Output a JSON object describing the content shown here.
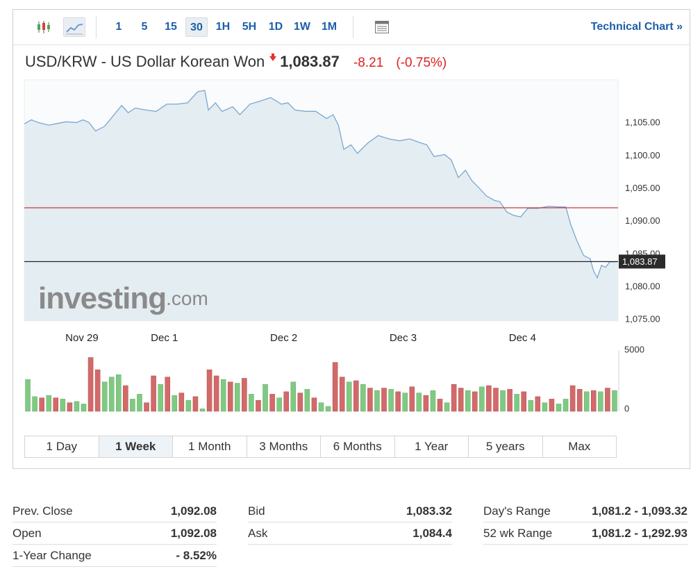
{
  "toolbar": {
    "intervals": [
      "1",
      "5",
      "15",
      "30",
      "1H",
      "5H",
      "1D",
      "1W",
      "1M"
    ],
    "active_interval": 3,
    "link": "Technical Chart",
    "link_arrow": "»"
  },
  "header": {
    "title": "USD/KRW - US Dollar Korean Won",
    "price": "1,083.87",
    "change": "-8.21",
    "change_pct": "(-0.75%)"
  },
  "chart_data": [
    {
      "type": "area",
      "color": "#7aa7d2",
      "fill": "#e4edf2",
      "x": [
        0,
        1.2,
        2.3,
        4.1,
        5.3,
        7.0,
        8.8,
        9.9,
        10.9,
        12.0,
        13.5,
        14.6,
        16.4,
        17.5,
        18.7,
        20.5,
        22.2,
        24.0,
        25.7,
        27.5,
        29.2,
        30.4,
        31.0,
        32.2,
        33.3,
        35.1,
        36.3,
        38.0,
        39.8,
        41.5,
        43.3,
        44.4,
        45.6,
        47.4,
        49.1,
        50.9,
        52.0,
        52.9,
        53.8,
        55.0,
        56.1,
        57.9,
        59.6,
        61.4,
        63.2,
        64.9,
        66.7,
        67.8,
        69.0,
        70.8,
        71.9,
        73.1,
        74.3,
        75.4,
        76.6,
        77.8,
        79.2,
        80.1,
        81.3,
        82.5,
        83.6,
        84.8,
        86.5,
        88.3,
        90.1,
        91.2,
        92.0,
        93.0,
        94.2,
        95.3,
        95.9,
        96.5,
        97.2,
        97.9,
        98.6,
        100
      ],
      "values": [
        1104.9,
        1105.5,
        1105.1,
        1104.7,
        1104.9,
        1105.2,
        1105.1,
        1105.5,
        1105.1,
        1103.8,
        1104.5,
        1105.7,
        1107.7,
        1106.6,
        1107.3,
        1107.0,
        1106.8,
        1107.9,
        1107.9,
        1108.1,
        1109.8,
        1110.0,
        1107.0,
        1108.1,
        1106.8,
        1107.5,
        1106.3,
        1107.9,
        1108.4,
        1108.9,
        1107.9,
        1108.1,
        1107.0,
        1106.8,
        1106.8,
        1105.7,
        1106.3,
        1104.7,
        1101.0,
        1101.7,
        1100.4,
        1102.0,
        1103.1,
        1102.6,
        1102.3,
        1102.6,
        1102.0,
        1101.7,
        1099.9,
        1100.2,
        1099.4,
        1096.7,
        1097.8,
        1096.2,
        1095.1,
        1093.9,
        1093.2,
        1093.0,
        1091.4,
        1090.9,
        1090.7,
        1092.0,
        1092.0,
        1092.3,
        1092.2,
        1092.2,
        1089.6,
        1087.2,
        1084.8,
        1084.3,
        1082.4,
        1081.4,
        1083.3,
        1083.0,
        1083.8,
        1083.87
      ],
      "xlim": [
        0,
        100
      ],
      "ylim": [
        1074.8,
        1111.6
      ],
      "xticks": [
        {
          "value": 9.7,
          "label": "Nov 29"
        },
        {
          "value": 23.6,
          "label": "Dec 1"
        },
        {
          "value": 43.7,
          "label": "Dec 2"
        },
        {
          "value": 63.8,
          "label": "Dec 3"
        },
        {
          "value": 83.9,
          "label": "Dec 4"
        }
      ],
      "yticks": [
        {
          "value": 1075,
          "label": "1,075.00"
        },
        {
          "value": 1080,
          "label": "1,080.00"
        },
        {
          "value": 1085,
          "label": "1,085.00"
        },
        {
          "value": 1090,
          "label": "1,090.00"
        },
        {
          "value": 1095,
          "label": "1,095.00"
        },
        {
          "value": 1100,
          "label": "1,100.00"
        },
        {
          "value": 1105,
          "label": "1,105.00"
        }
      ],
      "reference_lines": [
        {
          "value": 1092.08,
          "color": "#c0272d"
        },
        {
          "value": 1083.87,
          "color": "#222222",
          "label": "1,083.87"
        }
      ],
      "watermark": [
        "investing",
        ".com"
      ]
    },
    {
      "type": "bar",
      "ylim": [
        0,
        5000
      ],
      "yticks": [
        0,
        5000
      ],
      "values": [
        2600,
        1200,
        1100,
        1300,
        1100,
        1000,
        700,
        800,
        600,
        4400,
        3400,
        2400,
        2800,
        3000,
        2100,
        1000,
        1400,
        700,
        2900,
        2200,
        2800,
        1300,
        1500,
        900,
        1200,
        200,
        3400,
        2900,
        2600,
        2400,
        2300,
        2700,
        1400,
        900,
        2200,
        1400,
        1100,
        1600,
        2400,
        1500,
        1800,
        1100,
        700,
        400,
        4000,
        2800,
        2400,
        2500,
        2200,
        1900,
        1700,
        1900,
        1800,
        1600,
        1500,
        2000,
        1500,
        1300,
        1700,
        1000,
        700,
        2200,
        1900,
        1700,
        1600,
        2000,
        2100,
        1900,
        1700,
        1800,
        1400,
        1600,
        900,
        1200,
        700,
        1000,
        600,
        1000,
        2100,
        1800,
        1600,
        1700,
        1600,
        1900,
        1700
      ],
      "colors": [
        "#80c983",
        "#80c983",
        "#d26a6a",
        "#80c983",
        "#d26a6a",
        "#80c983",
        "#d26a6a",
        "#80c983",
        "#80c983",
        "#d26a6a",
        "#d26a6a",
        "#80c983",
        "#80c983",
        "#80c983",
        "#d26a6a",
        "#80c983",
        "#80c983",
        "#d26a6a",
        "#d26a6a",
        "#80c983",
        "#d26a6a",
        "#80c983",
        "#d26a6a",
        "#80c983",
        "#d26a6a",
        "#80c983",
        "#d26a6a",
        "#d26a6a",
        "#80c983",
        "#d26a6a",
        "#80c983",
        "#d26a6a",
        "#80c983",
        "#d26a6a",
        "#80c983",
        "#d26a6a",
        "#80c983",
        "#d26a6a",
        "#80c983",
        "#d26a6a",
        "#80c983",
        "#d26a6a",
        "#80c983",
        "#80c983",
        "#d26a6a",
        "#d26a6a",
        "#80c983",
        "#d26a6a",
        "#80c983",
        "#d26a6a",
        "#80c983",
        "#d26a6a",
        "#80c983",
        "#d26a6a",
        "#80c983",
        "#d26a6a",
        "#80c983",
        "#d26a6a",
        "#80c983",
        "#d26a6a",
        "#80c983",
        "#d26a6a",
        "#d26a6a",
        "#80c983",
        "#d26a6a",
        "#80c983",
        "#d26a6a",
        "#d26a6a",
        "#80c983",
        "#d26a6a",
        "#80c983",
        "#d26a6a",
        "#80c983",
        "#d26a6a",
        "#80c983",
        "#d26a6a",
        "#80c983",
        "#80c983",
        "#d26a6a",
        "#d26a6a",
        "#80c983",
        "#d26a6a",
        "#80c983",
        "#d26a6a",
        "#80c983"
      ]
    }
  ],
  "ranges": {
    "items": [
      "1 Day",
      "1 Week",
      "1 Month",
      "3 Months",
      "6 Months",
      "1 Year",
      "5 years",
      "Max"
    ],
    "active": 1
  },
  "stats": {
    "columns": [
      [
        {
          "label": "Prev. Close",
          "value": "1,092.08"
        },
        {
          "label": "Open",
          "value": "1,092.08"
        },
        {
          "label": "1-Year Change",
          "value": "- 8.52%"
        }
      ],
      [
        {
          "label": "Bid",
          "value": "1,083.32"
        },
        {
          "label": "Ask",
          "value": "1,084.4"
        }
      ],
      [
        {
          "label": "Day's Range",
          "value": "1,081.2 - 1,093.32"
        },
        {
          "label": "52 wk Range",
          "value": "1,081.2 - 1,292.93"
        }
      ]
    ]
  }
}
